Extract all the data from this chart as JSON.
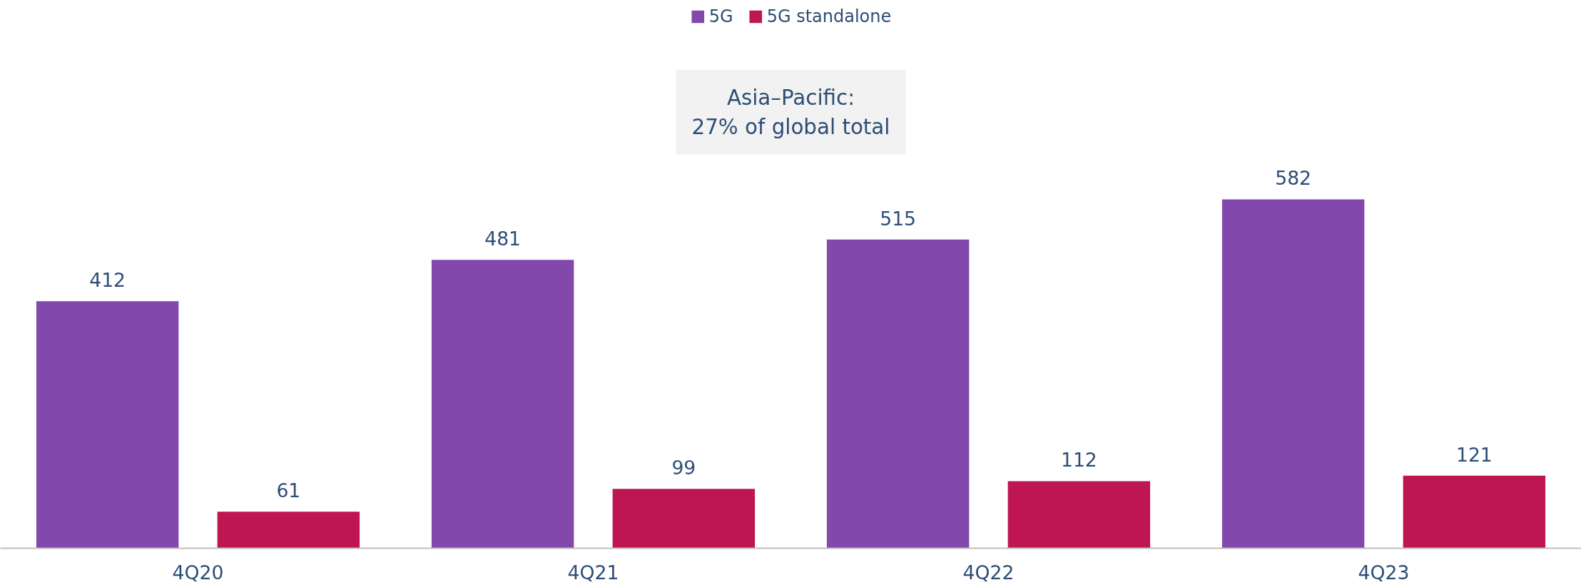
{
  "chart_data": {
    "type": "bar",
    "categories": [
      "4Q20",
      "4Q21",
      "4Q22",
      "4Q23"
    ],
    "series": [
      {
        "name": "5G",
        "color": "#8248ab",
        "values": [
          412,
          481,
          515,
          582
        ]
      },
      {
        "name": "5G standalone",
        "color": "#be1653",
        "values": [
          61,
          99,
          112,
          121
        ]
      }
    ],
    "data_labels": true,
    "legend": "top",
    "grid": false,
    "annotations": [
      "Asia–Pacific:\n27% of global total"
    ]
  }
}
